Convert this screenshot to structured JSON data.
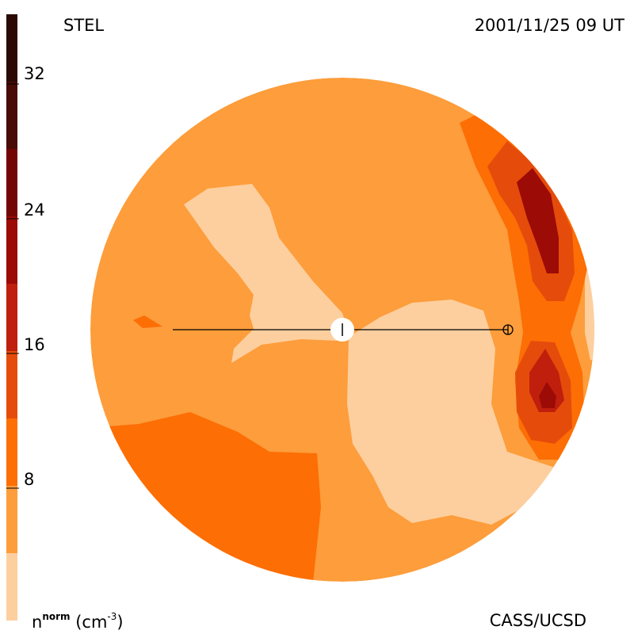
{
  "header": {
    "instrument": "STEL",
    "timestamp": "2001/11/25 09 UT"
  },
  "footer": {
    "credit": "CASS/UCSD"
  },
  "colorbar": {
    "unit_base": "n",
    "unit_sup": "norm",
    "unit_rest": "(cm",
    "unit_exp": "-3",
    "unit_close": ")",
    "tick_labels": [
      "8",
      "16",
      "24",
      "32"
    ],
    "levels": [
      {
        "from": 0,
        "to": 4,
        "color": "#fdcf9f"
      },
      {
        "from": 4,
        "to": 8,
        "color": "#fd9d3b"
      },
      {
        "from": 8,
        "to": 12,
        "color": "#fd6e05"
      },
      {
        "from": 12,
        "to": 16,
        "color": "#e54c0b"
      },
      {
        "from": 16,
        "to": 20,
        "color": "#bf1f0c"
      },
      {
        "from": 20,
        "to": 24,
        "color": "#9c0b06"
      },
      {
        "from": 24,
        "to": 28,
        "color": "#730502"
      },
      {
        "from": 28,
        "to": 32,
        "color": "#480b05"
      },
      {
        "from": 32,
        "to": 36,
        "color": "#2a0a04"
      }
    ]
  },
  "map": {
    "background_level_color": "#fd9d3b",
    "light_color": "#fdcf9f",
    "mid_color": "#fd6e05",
    "high_color": "#e54c0b",
    "peak_color": "#bf1f0c",
    "sun_marker": "sun",
    "earth_marker": "earth"
  }
}
